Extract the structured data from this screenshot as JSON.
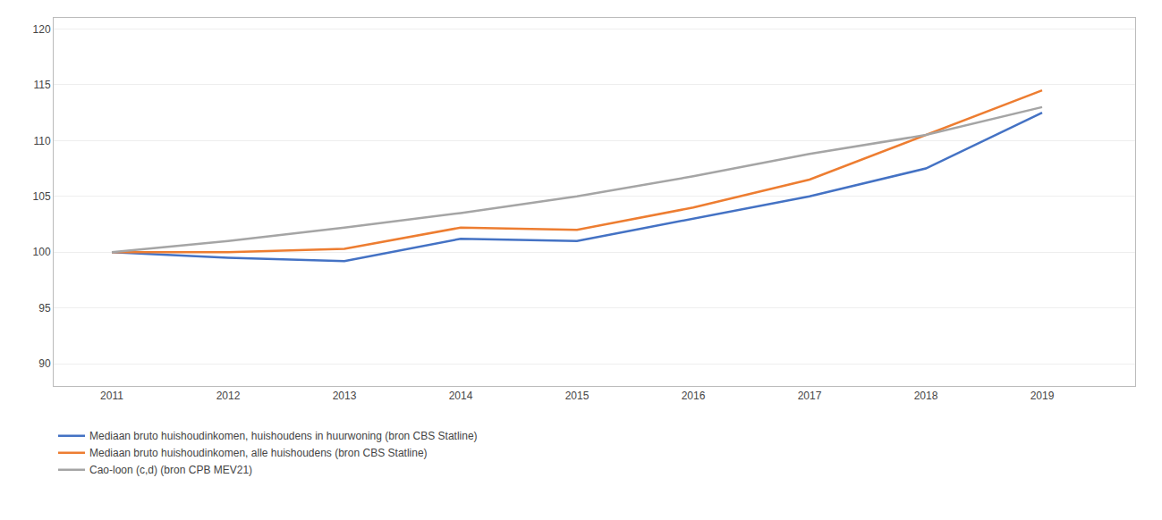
{
  "chart_data": {
    "type": "line",
    "x": [
      2011,
      2012,
      2013,
      2014,
      2015,
      2016,
      2017,
      2018,
      2019
    ],
    "series": [
      {
        "name": "Mediaan bruto huishoudinkomen, huishoudens in huurwoning (bron CBS Statline)",
        "color": "#4472C4",
        "values": [
          100.0,
          99.5,
          99.2,
          101.2,
          101.0,
          103.0,
          105.0,
          107.5,
          112.5
        ]
      },
      {
        "name": "Mediaan bruto huishoudinkomen, alle huishoudens (bron CBS Statline)",
        "color": "#ED7D31",
        "values": [
          100.0,
          100.0,
          100.3,
          102.2,
          102.0,
          104.0,
          106.5,
          110.5,
          114.5
        ]
      },
      {
        "name": "Cao-loon (c,d) (bron CPB MEV21)",
        "color": "#A5A5A5",
        "values": [
          100.0,
          101.0,
          102.2,
          103.5,
          105.0,
          106.8,
          108.8,
          110.5,
          113.0
        ]
      }
    ],
    "xlim": [
      2010.5,
      2019.8
    ],
    "xticks": [
      2011,
      2012,
      2013,
      2014,
      2015,
      2016,
      2017,
      2018,
      2019
    ],
    "ylim": [
      88,
      121
    ],
    "yticks": [
      90,
      95,
      100,
      105,
      110,
      115,
      120
    ],
    "grid": true,
    "legend": "bottom"
  }
}
